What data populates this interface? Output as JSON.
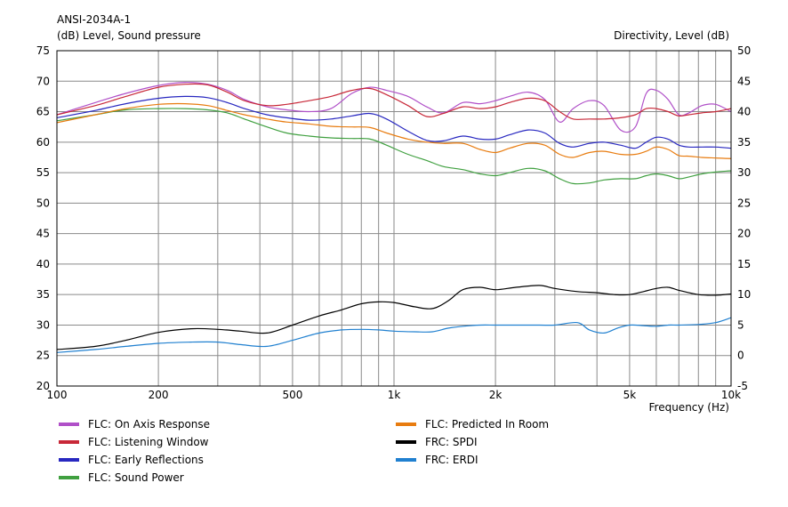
{
  "chart_data": {
    "type": "line",
    "title": "ANSI-2034A-1",
    "left_axis_label": "(dB)  Level, Sound pressure",
    "right_axis_label": "Directivity, Level  (dB)",
    "xlabel": "Frequency  (Hz)",
    "x_scale": "log",
    "xlim": [
      100,
      10000
    ],
    "ylim": [
      20,
      75
    ],
    "y2lim": [
      -5,
      50
    ],
    "grid": true,
    "legend_position": "bottom",
    "x_tick_labels": [
      "100",
      "200",
      "500",
      "1k",
      "2k",
      "5k",
      "10k"
    ],
    "y_tick_labels": [
      "20",
      "25",
      "30",
      "35",
      "40",
      "45",
      "50",
      "55",
      "60",
      "65",
      "70",
      "75"
    ],
    "y2_tick_labels": [
      "-5",
      "0",
      "5",
      "10",
      "15",
      "20",
      "25",
      "30",
      "35",
      "40",
      "45",
      "50"
    ],
    "series": [
      {
        "name": "FLC: On Axis Response",
        "color": "#b050c8",
        "axis": "left",
        "x": [
          100,
          130,
          160,
          200,
          240,
          280,
          320,
          360,
          420,
          480,
          560,
          650,
          750,
          850,
          950,
          1100,
          1250,
          1400,
          1600,
          1800,
          2000,
          2200,
          2500,
          2800,
          3100,
          3400,
          3800,
          4200,
          4700,
          5200,
          5600,
          6000,
          6500,
          7000,
          7500,
          8200,
          9000,
          10000
        ],
        "y": [
          64.5,
          66.5,
          68.0,
          69.3,
          69.8,
          69.5,
          68.5,
          67.0,
          65.8,
          65.3,
          65.0,
          65.5,
          68.0,
          69.0,
          68.5,
          67.5,
          65.8,
          64.8,
          66.5,
          66.3,
          66.8,
          67.5,
          68.2,
          67.0,
          63.3,
          65.5,
          66.8,
          66.0,
          62.0,
          62.5,
          68.0,
          68.5,
          67.0,
          64.5,
          64.8,
          66.0,
          66.2,
          65.0
        ]
      },
      {
        "name": "FLC: Listening Window",
        "color": "#c82838",
        "axis": "left",
        "x": [
          100,
          130,
          160,
          200,
          240,
          280,
          320,
          360,
          420,
          480,
          560,
          650,
          750,
          850,
          950,
          1100,
          1250,
          1400,
          1600,
          1800,
          2000,
          2200,
          2500,
          2800,
          3100,
          3400,
          3800,
          4200,
          4700,
          5200,
          5600,
          6000,
          6500,
          7000,
          7500,
          8200,
          9000,
          10000
        ],
        "y": [
          64.5,
          66.0,
          67.5,
          69.0,
          69.5,
          69.4,
          68.2,
          66.8,
          66.0,
          66.2,
          66.8,
          67.5,
          68.5,
          68.8,
          67.8,
          66.0,
          64.2,
          64.7,
          65.8,
          65.5,
          65.8,
          66.5,
          67.2,
          66.8,
          65.0,
          63.8,
          63.8,
          63.8,
          64.0,
          64.5,
          65.5,
          65.5,
          65.0,
          64.3,
          64.5,
          64.8,
          65.0,
          65.5
        ]
      },
      {
        "name": "FLC: Early Reflections",
        "color": "#2828c0",
        "axis": "left",
        "x": [
          100,
          130,
          160,
          200,
          240,
          280,
          320,
          360,
          420,
          480,
          560,
          650,
          750,
          850,
          950,
          1100,
          1250,
          1400,
          1600,
          1800,
          2000,
          2200,
          2500,
          2800,
          3100,
          3400,
          3800,
          4200,
          4700,
          5200,
          5600,
          6000,
          6500,
          7000,
          7500,
          8200,
          9000,
          10000
        ],
        "y": [
          64.0,
          65.2,
          66.3,
          67.2,
          67.5,
          67.3,
          66.5,
          65.5,
          64.5,
          64.0,
          63.6,
          63.8,
          64.3,
          64.7,
          63.8,
          61.8,
          60.3,
          60.2,
          61.0,
          60.5,
          60.5,
          61.2,
          62.0,
          61.5,
          59.8,
          59.2,
          59.8,
          60.0,
          59.5,
          59.0,
          60.0,
          60.8,
          60.5,
          59.5,
          59.2,
          59.2,
          59.2,
          59.0
        ]
      },
      {
        "name": "FLC: Sound Power",
        "color": "#40a040",
        "axis": "left",
        "x": [
          100,
          130,
          160,
          200,
          240,
          280,
          320,
          360,
          420,
          480,
          560,
          650,
          750,
          850,
          950,
          1100,
          1250,
          1400,
          1600,
          1800,
          2000,
          2200,
          2500,
          2800,
          3100,
          3400,
          3800,
          4200,
          4700,
          5200,
          5600,
          6000,
          6500,
          7000,
          7500,
          8200,
          9000,
          10000
        ],
        "y": [
          63.5,
          64.5,
          65.3,
          65.5,
          65.5,
          65.3,
          64.8,
          63.8,
          62.5,
          61.5,
          61.0,
          60.7,
          60.6,
          60.5,
          59.5,
          58.0,
          57.0,
          56.0,
          55.5,
          54.8,
          54.5,
          55.0,
          55.7,
          55.3,
          54.0,
          53.2,
          53.3,
          53.8,
          54.0,
          54.0,
          54.5,
          54.8,
          54.5,
          54.0,
          54.3,
          54.8,
          55.1,
          55.3
        ]
      },
      {
        "name": "FLC: Predicted In Room",
        "color": "#e87c10",
        "axis": "left",
        "x": [
          100,
          130,
          160,
          200,
          240,
          280,
          320,
          360,
          420,
          480,
          560,
          650,
          750,
          850,
          950,
          1100,
          1250,
          1400,
          1600,
          1800,
          2000,
          2200,
          2500,
          2800,
          3100,
          3400,
          3800,
          4200,
          4700,
          5200,
          5600,
          6000,
          6500,
          7000,
          7500,
          8200,
          9000,
          10000
        ],
        "y": [
          63.2,
          64.5,
          65.5,
          66.2,
          66.3,
          66.0,
          65.2,
          64.5,
          63.8,
          63.3,
          63.0,
          62.6,
          62.5,
          62.4,
          61.5,
          60.5,
          60.0,
          59.8,
          59.8,
          58.8,
          58.3,
          59.0,
          59.8,
          59.5,
          58.0,
          57.5,
          58.3,
          58.5,
          58.0,
          58.0,
          58.5,
          59.2,
          58.8,
          57.8,
          57.7,
          57.5,
          57.4,
          57.3
        ]
      },
      {
        "name": "FRC: SPDI",
        "color": "#000000",
        "axis": "right",
        "x": [
          100,
          130,
          160,
          200,
          250,
          300,
          350,
          420,
          500,
          600,
          700,
          800,
          900,
          1000,
          1150,
          1300,
          1450,
          1600,
          1800,
          2000,
          2300,
          2700,
          3000,
          3500,
          4000,
          4500,
          5000,
          5500,
          6000,
          6500,
          7000,
          8000,
          9000,
          10000
        ],
        "y": [
          1.0,
          1.5,
          2.5,
          3.8,
          4.4,
          4.3,
          4.0,
          3.7,
          5.0,
          6.5,
          7.5,
          8.5,
          8.8,
          8.7,
          8.0,
          7.7,
          9.0,
          10.8,
          11.2,
          10.8,
          11.2,
          11.5,
          11.0,
          10.5,
          10.3,
          10.0,
          10.0,
          10.5,
          11.0,
          11.2,
          10.7,
          10.0,
          9.9,
          10.1
        ]
      },
      {
        "name": "FRC: ERDI",
        "color": "#2080d0",
        "axis": "right",
        "x": [
          100,
          130,
          160,
          200,
          250,
          300,
          350,
          420,
          500,
          600,
          700,
          800,
          900,
          1000,
          1150,
          1300,
          1450,
          1600,
          1800,
          2000,
          2300,
          2700,
          3000,
          3500,
          3800,
          4200,
          4600,
          5000,
          5500,
          6000,
          6500,
          7000,
          8000,
          9000,
          10000
        ],
        "y": [
          0.5,
          1.0,
          1.5,
          2.0,
          2.2,
          2.2,
          1.8,
          1.5,
          2.5,
          3.7,
          4.2,
          4.3,
          4.2,
          4.0,
          3.9,
          3.9,
          4.5,
          4.8,
          5.0,
          5.0,
          5.0,
          5.0,
          5.0,
          5.4,
          4.2,
          3.7,
          4.5,
          5.0,
          4.9,
          4.8,
          5.0,
          5.0,
          5.1,
          5.4,
          6.2
        ]
      }
    ]
  }
}
